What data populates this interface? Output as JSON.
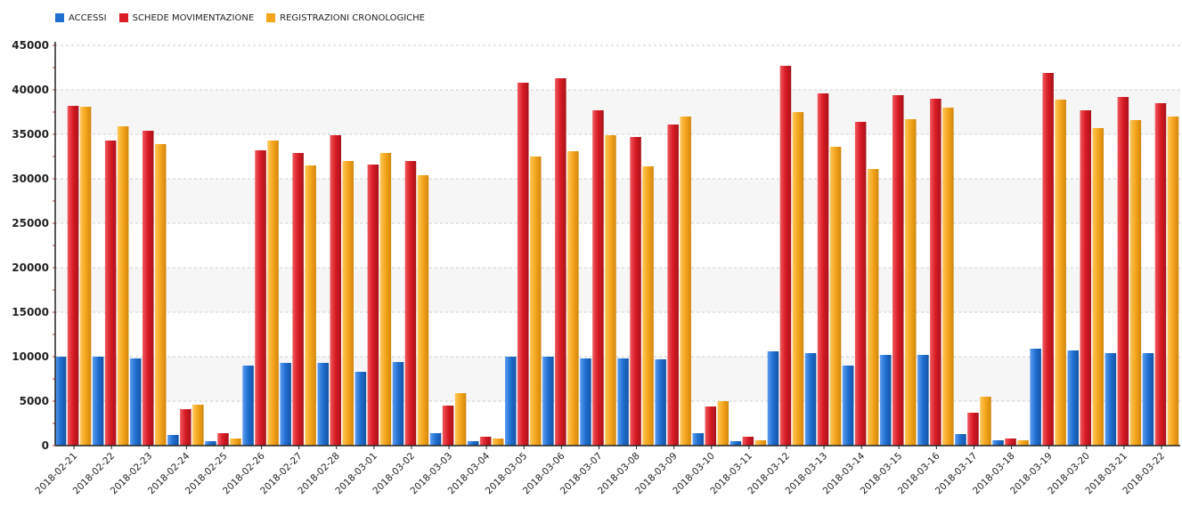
{
  "legend": [
    {
      "label": "ACCESSI",
      "color": "#1f6fd1"
    },
    {
      "label": "SCHEDE MOVIMENTAZIONE",
      "color": "#d81b24"
    },
    {
      "label": "REGISTRAZIONI CRONOLOGICHE",
      "color": "#f5a51c"
    }
  ],
  "chart_data": {
    "type": "bar",
    "title": "",
    "xlabel": "",
    "ylabel": "",
    "ylim": [
      0,
      45000
    ],
    "yticks": [
      0,
      5000,
      10000,
      15000,
      20000,
      25000,
      30000,
      35000,
      40000,
      45000
    ],
    "grid": true,
    "legend_position": "top-left",
    "categories": [
      "2018-02-21",
      "2018-02-22",
      "2018-02-23",
      "2018-02-24",
      "2018-02-25",
      "2018-02-26",
      "2018-02-27",
      "2018-02-28",
      "2018-03-01",
      "2018-03-02",
      "2018-03-03",
      "2018-03-04",
      "2018-03-05",
      "2018-03-06",
      "2018-03-07",
      "2018-03-08",
      "2018-03-09",
      "2018-03-10",
      "2018-03-11",
      "2018-03-12",
      "2018-03-13",
      "2018-03-14",
      "2018-03-15",
      "2018-03-16",
      "2018-03-17",
      "2018-03-18",
      "2018-03-19",
      "2018-03-20",
      "2018-03-21",
      "2018-03-22"
    ],
    "series": [
      {
        "name": "ACCESSI",
        "color": "#1f6fd1",
        "values": [
          10000,
          10000,
          9800,
          1200,
          500,
          9000,
          9300,
          9300,
          8300,
          9400,
          1400,
          500,
          10000,
          10000,
          9800,
          9800,
          9700,
          1400,
          500,
          10600,
          10400,
          9000,
          10200,
          10200,
          1300,
          600,
          10900,
          10700,
          10400,
          10400
        ]
      },
      {
        "name": "SCHEDE MOVIMENTAZIONE",
        "color": "#d81b24",
        "values": [
          38200,
          34300,
          35400,
          4100,
          1400,
          33200,
          32900,
          34900,
          31600,
          32000,
          4500,
          1000,
          40800,
          41300,
          37700,
          34700,
          36100,
          4400,
          1000,
          42700,
          39600,
          36400,
          39400,
          39000,
          3700,
          800,
          41900,
          37700,
          39200,
          38500
        ]
      },
      {
        "name": "REGISTRAZIONI CRONOLOGICHE",
        "color": "#f5a51c",
        "values": [
          38100,
          35900,
          33900,
          4600,
          800,
          34300,
          31500,
          32000,
          32900,
          30400,
          5900,
          800,
          32500,
          33100,
          34900,
          31400,
          37000,
          5000,
          600,
          37500,
          33600,
          31100,
          36700,
          38000,
          5500,
          600,
          38900,
          35700,
          36600,
          37000
        ]
      }
    ]
  }
}
